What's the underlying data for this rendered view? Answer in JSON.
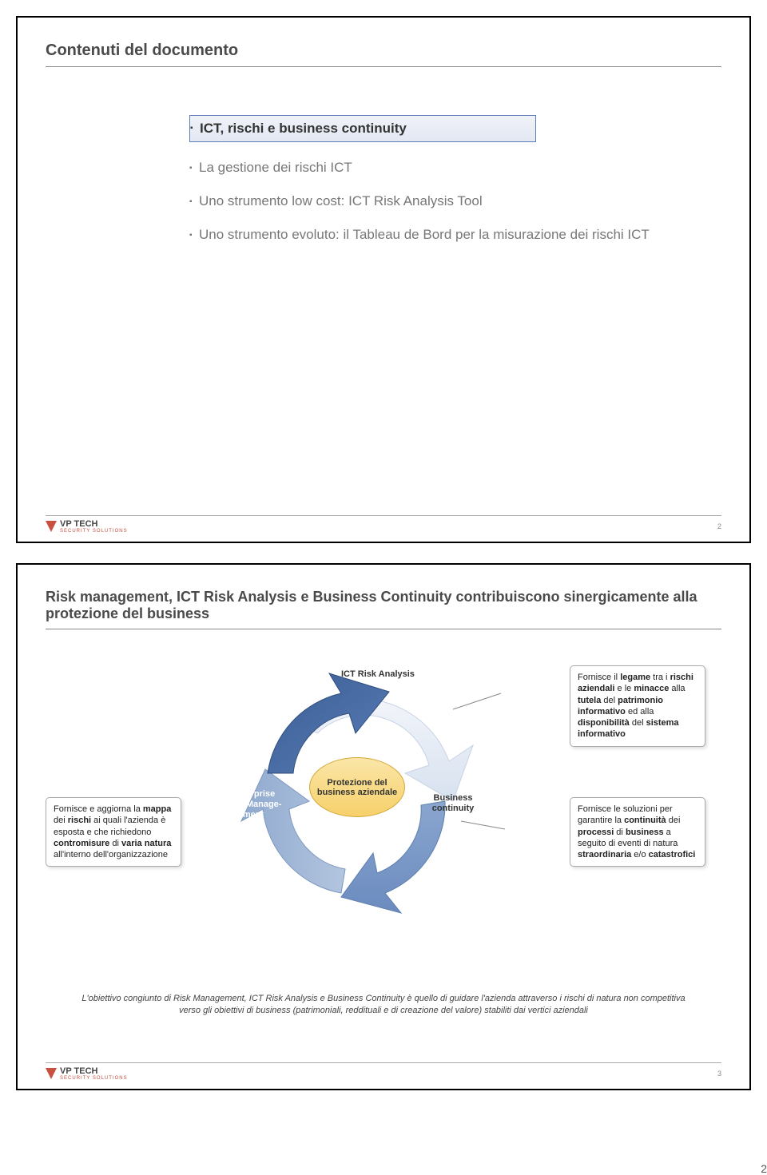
{
  "slide1": {
    "title": "Contenuti del documento",
    "toc": [
      {
        "text": "ICT, rischi e business continuity",
        "active": true
      },
      {
        "text": "La gestione dei rischi ICT",
        "active": false
      },
      {
        "text": "Uno strumento low cost: ICT Risk Analysis Tool",
        "active": false
      },
      {
        "text": "Uno strumento evoluto: il Tableau de Bord per la misurazione dei rischi ICT",
        "active": false
      }
    ],
    "logo_text": "VP TECH",
    "logo_sub": "SECURITY SOLUTIONS",
    "page_num": "2"
  },
  "slide2": {
    "title": "Risk management, ICT Risk Analysis e Business Continuity contribuiscono sinergicamente alla protezione del business",
    "box_left_html": "Fornisce e aggiorna la <b>mappa</b> dei <b>rischi</b> ai quali l'azienda è esposta e che richiedono <b>contromisure</b> di <b>varia natura</b> all'interno dell'organizzazione",
    "box_tr_html": "Fornisce il <b>legame</b> tra i <b>rischi aziendali</b> e le <b>minacce</b> alla <b>tutela</b> del <b>patrimonio informativo</b> ed alla <b>disponibilità</b> del <b>sistema informativo</b>",
    "box_br_html": "Fornisce le soluzioni per garantire la <b>continuità</b> dei <b>processi</b> di <b>business</b> a seguito di eventi di natura <b>straordinaria</b> e/o <b>catastrofici</b>",
    "label_top": "ICT Risk Analysis",
    "label_left": "Enterprise Risk Manage-ment",
    "label_right": "Business continuity",
    "center": "Protezione del business aziendale",
    "summary": "L'obiettivo congiunto di Risk Management, ICT Risk Analysis e Business Continuity è quello di guidare l'azienda attraverso i rischi di natura non competitiva verso gli obiettivi di business (patrimoniali, reddituali e di creazione del valore) stabiliti dai vertici aziendali",
    "logo_text": "VP TECH",
    "logo_sub": "SECURITY SOLUTIONS",
    "page_num": "3",
    "colors": {
      "arrow_top": "#e8edf5",
      "arrow_left": "#4a6fa5",
      "arrow_right": "#7c98c4",
      "arrow_bottom": "#9db5d6",
      "center_fill_top": "#fbe6a8",
      "center_fill_bot": "#f6d06a",
      "center_stroke": "#d4a83a"
    }
  },
  "corner_page": "2"
}
